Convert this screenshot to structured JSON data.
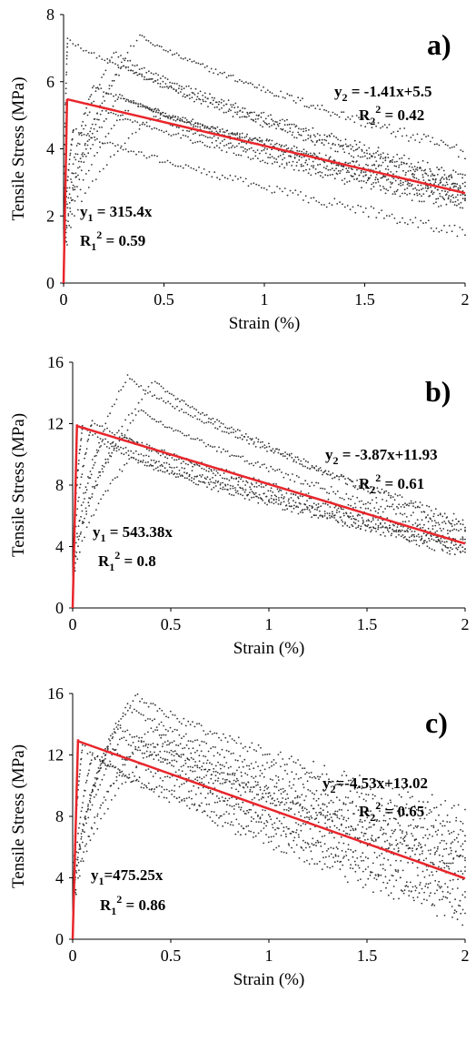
{
  "chart_data": [
    {
      "type": "scatter",
      "panel_label": "a)",
      "xlabel": "Strain (%)",
      "ylabel": "Tensile Stress (MPa)",
      "xlim": [
        0,
        2
      ],
      "ylim": [
        0,
        8
      ],
      "xticks": [
        "0",
        "0.5",
        "1",
        "1.5",
        "2"
      ],
      "yticks": [
        "0",
        "2",
        "4",
        "6",
        "8"
      ],
      "series": [
        {
          "peak_strain": 0.02,
          "peak_stress": 7.3,
          "end_stress": 3.0
        },
        {
          "peak_strain": 0.38,
          "peak_stress": 7.4,
          "end_stress": 3.9
        },
        {
          "peak_strain": 0.25,
          "peak_stress": 6.9,
          "end_stress": 3.1
        },
        {
          "peak_strain": 0.3,
          "peak_stress": 6.5,
          "end_stress": 2.9
        },
        {
          "peak_strain": 0.15,
          "peak_stress": 5.9,
          "end_stress": 2.7
        },
        {
          "peak_strain": 0.28,
          "peak_stress": 5.6,
          "end_stress": 2.6
        },
        {
          "peak_strain": 0.45,
          "peak_stress": 5.0,
          "end_stress": 2.4
        },
        {
          "peak_strain": 0.2,
          "peak_stress": 5.2,
          "end_stress": 2.3
        },
        {
          "peak_strain": 0.05,
          "peak_stress": 4.6,
          "end_stress": 1.5
        },
        {
          "peak_strain": 0.35,
          "peak_stress": 5.4,
          "end_stress": 2.8
        }
      ],
      "fit_lines": {
        "color": "#e8262b",
        "elastic": {
          "slope": 315.4,
          "x_end": 0.0174
        },
        "softening": {
          "slope": -1.41,
          "intercept": 5.5,
          "x_start": 0.0174,
          "x_end": 2
        }
      },
      "annotations": {
        "eq2": {
          "y_main": "y",
          "y_sub": "2",
          "y_rest": " = -1.41x+5.5"
        },
        "r2_2": {
          "r_main": "R",
          "r_sub": "2",
          "r_sup": "2",
          "r_rest": " = 0.42"
        },
        "eq1": {
          "y_main": "y",
          "y_sub": "1",
          "y_rest": " = 315.4x"
        },
        "r2_1": {
          "r_main": "R",
          "r_sub": "1",
          "r_sup": "2",
          "r_rest": " = 0.59"
        }
      }
    },
    {
      "type": "scatter",
      "panel_label": "b)",
      "xlabel": "Strain (%)",
      "ylabel": "Tensile Stress (MPa)",
      "xlim": [
        0,
        2
      ],
      "ylim": [
        0,
        16
      ],
      "xticks": [
        "0",
        "0.5",
        "1",
        "1.5",
        "2"
      ],
      "yticks": [
        "0",
        "4",
        "8",
        "12",
        "16"
      ],
      "series": [
        {
          "peak_strain": 0.28,
          "peak_stress": 15.1,
          "end_stress": 5.5
        },
        {
          "peak_strain": 0.42,
          "peak_stress": 14.8,
          "end_stress": 5.2
        },
        {
          "peak_strain": 0.35,
          "peak_stress": 12.9,
          "end_stress": 4.8
        },
        {
          "peak_strain": 0.1,
          "peak_stress": 12.2,
          "end_stress": 4.5
        },
        {
          "peak_strain": 0.25,
          "peak_stress": 11.3,
          "end_stress": 4.2
        },
        {
          "peak_strain": 0.15,
          "peak_stress": 10.8,
          "end_stress": 4.0
        },
        {
          "peak_strain": 0.3,
          "peak_stress": 9.8,
          "end_stress": 3.8
        },
        {
          "peak_strain": 0.05,
          "peak_stress": 11.8,
          "end_stress": 3.6
        }
      ],
      "fit_lines": {
        "color": "#e8262b",
        "elastic": {
          "slope": 543.38,
          "x_end": 0.022
        },
        "softening": {
          "slope": -3.87,
          "intercept": 11.93,
          "x_start": 0.022,
          "x_end": 2
        }
      },
      "annotations": {
        "eq2": {
          "y_main": "y",
          "y_sub": "2",
          "y_rest": " = -3.87x+11.93"
        },
        "r2_2": {
          "r_main": "R",
          "r_sub": "2",
          "r_sup": "2",
          "r_rest": " = 0.61"
        },
        "eq1": {
          "y_main": "y",
          "y_sub": "1",
          "y_rest": " = 543.38x"
        },
        "r2_1": {
          "r_main": "R",
          "r_sub": "1",
          "r_sup": "2",
          "r_rest": " = 0.8"
        }
      }
    },
    {
      "type": "scatter",
      "panel_label": "c)",
      "xlabel": "Strain (%)",
      "ylabel": "Tensile Stress (MPa)",
      "xlim": [
        0,
        2
      ],
      "ylim": [
        0,
        16
      ],
      "xticks": [
        "0",
        "0.5",
        "1",
        "1.5",
        "2"
      ],
      "yticks": [
        "0",
        "4",
        "8",
        "12",
        "16"
      ],
      "series": [
        {
          "peak_strain": 0.32,
          "peak_stress": 15.9,
          "end_stress": 8.0
        },
        {
          "peak_strain": 0.28,
          "peak_stress": 15.2,
          "end_stress": 7.0
        },
        {
          "peak_strain": 0.4,
          "peak_stress": 13.8,
          "end_stress": 6.0
        },
        {
          "peak_strain": 0.25,
          "peak_stress": 13.2,
          "end_stress": 5.0
        },
        {
          "peak_strain": 0.18,
          "peak_stress": 12.5,
          "end_stress": 4.0
        },
        {
          "peak_strain": 0.1,
          "peak_stress": 12.0,
          "end_stress": 3.0
        },
        {
          "peak_strain": 0.35,
          "peak_stress": 12.8,
          "end_stress": 2.0
        },
        {
          "peak_strain": 0.05,
          "peak_stress": 12.6,
          "end_stress": 1.5
        },
        {
          "peak_strain": 0.22,
          "peak_stress": 14.0,
          "end_stress": 5.5
        },
        {
          "peak_strain": 0.45,
          "peak_stress": 13.0,
          "end_stress": 4.5
        }
      ],
      "fit_lines": {
        "color": "#e8262b",
        "elastic": {
          "slope": 475.25,
          "x_end": 0.0274
        },
        "softening": {
          "slope": -4.53,
          "intercept": 13.02,
          "x_start": 0.0274,
          "x_end": 2
        }
      },
      "annotations": {
        "eq2": {
          "y_main": "y",
          "y_sub": "2",
          "y_rest": "=-4.53x+13.02"
        },
        "r2_2": {
          "r_main": "R",
          "r_sub": "2",
          "r_sup": "2",
          "r_rest": " = 0.65"
        },
        "eq1": {
          "y_main": "y",
          "y_sub": "1",
          "y_rest": "=475.25x"
        },
        "r2_1": {
          "r_main": "R",
          "r_sub": "1",
          "r_sup": "2",
          "r_rest": " = 0.86"
        }
      }
    }
  ]
}
